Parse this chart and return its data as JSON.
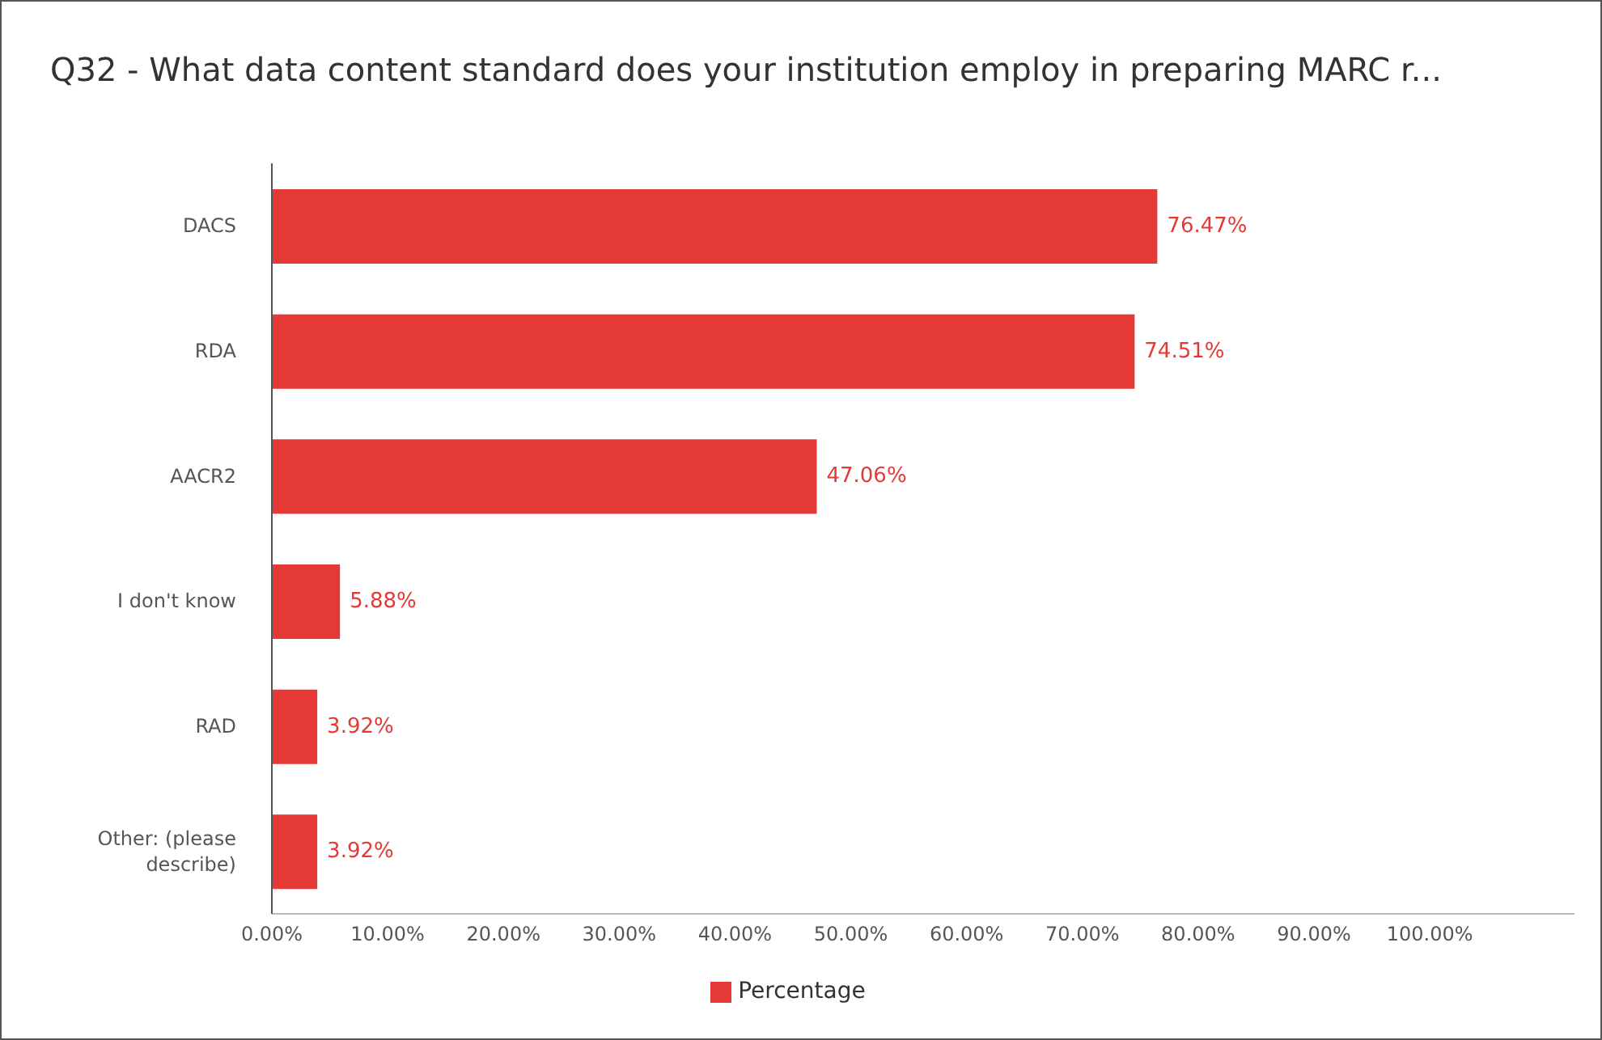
{
  "chart_data": {
    "type": "bar",
    "orientation": "horizontal",
    "title": "Q32 - What data content standard does your institution employ in preparing MARC r...",
    "categories": [
      "DACS",
      "RDA",
      "AACR2",
      "I don't know",
      "RAD",
      "Other: (please describe)"
    ],
    "series": [
      {
        "name": "Percentage",
        "color": "#e53935",
        "values": [
          76.47,
          74.51,
          47.06,
          5.88,
          3.92,
          3.92
        ]
      }
    ],
    "value_labels": [
      "76.47%",
      "74.51%",
      "47.06%",
      "5.88%",
      "3.92%",
      "3.92%"
    ],
    "xlim": [
      0,
      112.5
    ],
    "xticks": [
      {
        "value": 0,
        "label": "0.00%"
      },
      {
        "value": 10,
        "label": "10.00%"
      },
      {
        "value": 20,
        "label": "20.00%"
      },
      {
        "value": 30,
        "label": "30.00%"
      },
      {
        "value": 40,
        "label": "40.00%"
      },
      {
        "value": 50,
        "label": "50.00%"
      },
      {
        "value": 60,
        "label": "60.00%"
      },
      {
        "value": 70,
        "label": "70.00%"
      },
      {
        "value": 80,
        "label": "80.00%"
      },
      {
        "value": 90,
        "label": "90.00%"
      },
      {
        "value": 100,
        "label": "100.00%"
      }
    ],
    "grid": false,
    "legend": "bottom"
  }
}
